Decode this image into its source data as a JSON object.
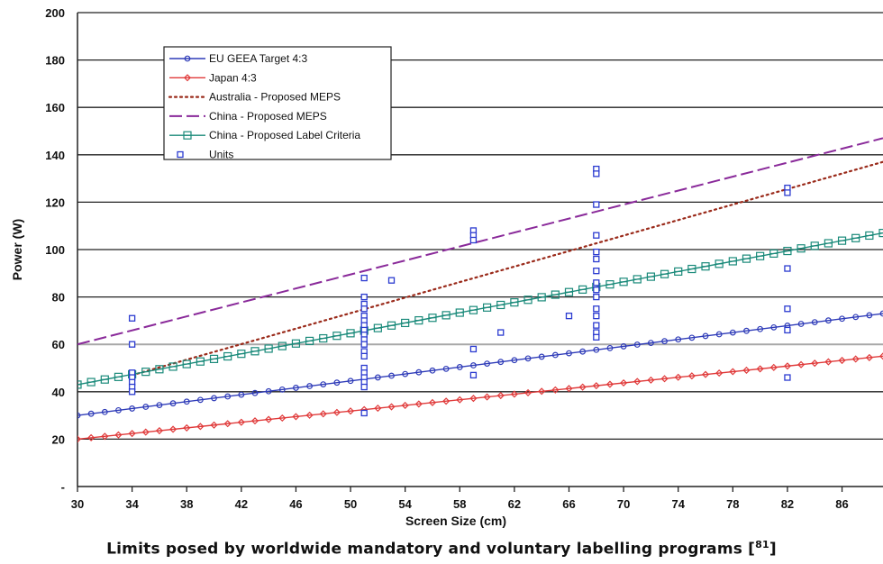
{
  "chart_data": {
    "type": "line",
    "xlabel": "Screen Size (cm)",
    "ylabel": "Power (W)",
    "xlim": [
      30,
      89
    ],
    "ylim": [
      0,
      200
    ],
    "x_ticks": [
      30,
      34,
      38,
      42,
      46,
      50,
      54,
      58,
      62,
      66,
      70,
      74,
      78,
      82,
      86
    ],
    "y_ticks": [
      0,
      20,
      40,
      60,
      80,
      100,
      120,
      140,
      160,
      180,
      200
    ],
    "y_tick_labels": [
      "-",
      "20",
      "40",
      "60",
      "80",
      "100",
      "120",
      "140",
      "160",
      "180",
      "200"
    ],
    "grid": "horizontal",
    "legend_position": "top-left",
    "series": [
      {
        "name": "EU GEEA Target 4:3",
        "kind": "line-circle",
        "color": "#2e3bb8",
        "x": [
          30,
          89
        ],
        "y": [
          30,
          73
        ]
      },
      {
        "name": "Japan 4:3",
        "kind": "line-diamond",
        "color": "#e03a3a",
        "x": [
          30,
          89
        ],
        "y": [
          20,
          55
        ]
      },
      {
        "name": "Australia - Proposed MEPS",
        "kind": "dotted",
        "color": "#9a2a1a",
        "x": [
          34,
          89
        ],
        "y": [
          47,
          137
        ]
      },
      {
        "name": "China - Proposed MEPS",
        "kind": "dashed",
        "color": "#8a2a9a",
        "x": [
          30,
          89
        ],
        "y": [
          60,
          147
        ]
      },
      {
        "name": "China - Proposed Label Criteria",
        "kind": "line-square",
        "color": "#1a8a7a",
        "x": [
          30,
          89
        ],
        "y": [
          43,
          107
        ]
      },
      {
        "name": "Units",
        "kind": "scatter",
        "color": "#2b3bd0",
        "points": [
          [
            34,
            71
          ],
          [
            34,
            60
          ],
          [
            34,
            48
          ],
          [
            34,
            46
          ],
          [
            34,
            44
          ],
          [
            34,
            42
          ],
          [
            34,
            40
          ],
          [
            51,
            88
          ],
          [
            51,
            80
          ],
          [
            51,
            77
          ],
          [
            51,
            75
          ],
          [
            51,
            72
          ],
          [
            51,
            70
          ],
          [
            51,
            68
          ],
          [
            51,
            66
          ],
          [
            51,
            64
          ],
          [
            51,
            62
          ],
          [
            51,
            60
          ],
          [
            51,
            57
          ],
          [
            51,
            55
          ],
          [
            51,
            50
          ],
          [
            51,
            48
          ],
          [
            51,
            46
          ],
          [
            51,
            44
          ],
          [
            51,
            42
          ],
          [
            51,
            31
          ],
          [
            53,
            87
          ],
          [
            59,
            108
          ],
          [
            59,
            106
          ],
          [
            59,
            104
          ],
          [
            59,
            58
          ],
          [
            59,
            47
          ],
          [
            61,
            65
          ],
          [
            66,
            72
          ],
          [
            68,
            134
          ],
          [
            68,
            132
          ],
          [
            68,
            119
          ],
          [
            68,
            106
          ],
          [
            68,
            99
          ],
          [
            68,
            96
          ],
          [
            68,
            91
          ],
          [
            68,
            86
          ],
          [
            68,
            83
          ],
          [
            68,
            80
          ],
          [
            68,
            75
          ],
          [
            68,
            72
          ],
          [
            68,
            68
          ],
          [
            68,
            65
          ],
          [
            68,
            63
          ],
          [
            82,
            126
          ],
          [
            82,
            124
          ],
          [
            82,
            92
          ],
          [
            82,
            75
          ],
          [
            82,
            66
          ],
          [
            82,
            46
          ]
        ]
      }
    ]
  },
  "caption": {
    "text": "Limits posed by worldwide mandatory and voluntary labelling programs [",
    "ref": "81",
    "close": "]"
  }
}
